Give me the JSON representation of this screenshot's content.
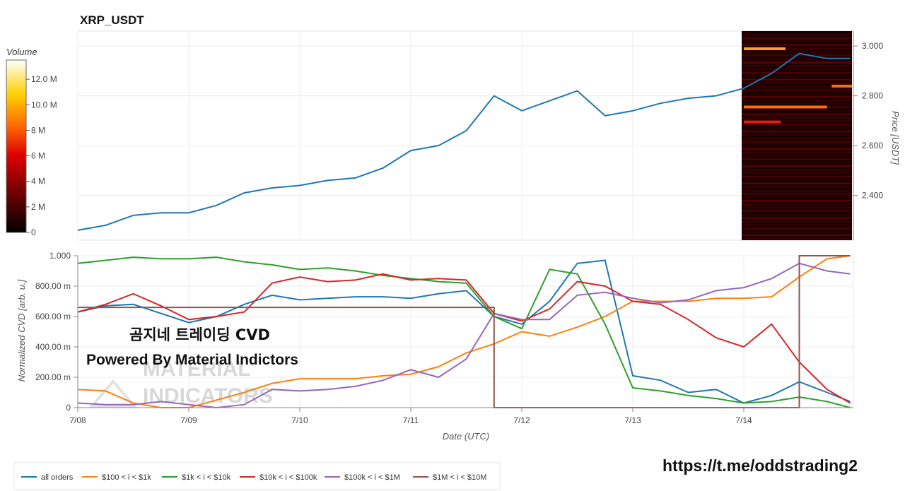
{
  "chart_data": [
    {
      "type": "line",
      "title": "XRP_USDT",
      "ylabel": "Price [USDT]",
      "ylim": [
        2.22,
        3.06
      ],
      "y_ticks": [
        "2.400",
        "2.600",
        "2.800",
        "3.000"
      ],
      "grid": true,
      "x": [
        "7/08 00:00",
        "7/08 06:00",
        "7/08 12:00",
        "7/08 18:00",
        "7/09 00:00",
        "7/09 06:00",
        "7/09 12:00",
        "7/09 18:00",
        "7/10 00:00",
        "7/10 06:00",
        "7/10 12:00",
        "7/10 18:00",
        "7/11 00:00",
        "7/11 06:00",
        "7/11 12:00",
        "7/11 18:00",
        "7/12 00:00",
        "7/12 06:00",
        "7/12 12:00",
        "7/12 18:00",
        "7/13 00:00",
        "7/13 06:00",
        "7/13 12:00",
        "7/13 18:00",
        "7/14 00:00",
        "7/14 06:00",
        "7/14 12:00",
        "7/14 18:00",
        "7/14 23:00"
      ],
      "series": [
        {
          "values": [
            2.26,
            2.28,
            2.32,
            2.33,
            2.33,
            2.36,
            2.41,
            2.43,
            2.44,
            2.46,
            2.47,
            2.51,
            2.58,
            2.6,
            2.66,
            2.8,
            2.74,
            2.78,
            2.82,
            2.72,
            2.74,
            2.77,
            2.79,
            2.8,
            2.83,
            2.89,
            2.97,
            2.95,
            2.95
          ],
          "color": "#1f77b4"
        }
      ],
      "heatmap": {
        "label": "Volume",
        "colorbar_ticks": [
          "0",
          "2 M",
          "4 M",
          "6 M",
          "8 M",
          "10.0 M",
          "12.0 M"
        ],
        "colorbar_range": [
          0,
          13500000
        ],
        "levels": [
          {
            "price": 2.989,
            "x_start": "7/14 00:00",
            "x_end": "7/14 09:00",
            "volume": 9000000
          },
          {
            "price": 2.839,
            "x_start": "7/14 19:00",
            "x_end": "7/14 23:59",
            "volume": 8000000
          },
          {
            "price": 2.755,
            "x_start": "7/14 00:00",
            "x_end": "7/14 18:00",
            "volume": 8000000
          },
          {
            "price": 2.695,
            "x_start": "7/14 00:00",
            "x_end": "7/14 08:00",
            "volume": 4000000
          }
        ]
      }
    },
    {
      "type": "line",
      "xlabel": "Date (UTC)",
      "ylabel": "Normalized CVD [arb. u.]",
      "ylim": [
        0,
        1
      ],
      "y_ticks": [
        "0",
        "200.00 m",
        "400.00 m",
        "600.00 m",
        "800.00 m",
        "1.000"
      ],
      "x_ticks": [
        "7/08",
        "7/09",
        "7/10",
        "7/11",
        "7/12",
        "7/13",
        "7/14"
      ],
      "grid": true,
      "legend": "bottom-left",
      "x": [
        "7/08 00:00",
        "7/08 06:00",
        "7/08 12:00",
        "7/08 18:00",
        "7/09 00:00",
        "7/09 06:00",
        "7/09 12:00",
        "7/09 18:00",
        "7/10 00:00",
        "7/10 06:00",
        "7/10 12:00",
        "7/10 18:00",
        "7/11 00:00",
        "7/11 06:00",
        "7/11 12:00",
        "7/11 18:00",
        "7/12 00:00",
        "7/12 06:00",
        "7/12 12:00",
        "7/12 18:00",
        "7/13 00:00",
        "7/13 06:00",
        "7/13 12:00",
        "7/13 18:00",
        "7/14 00:00",
        "7/14 06:00",
        "7/14 12:00",
        "7/14 18:00",
        "7/14 23:00"
      ],
      "series": [
        {
          "name": "all orders",
          "color": "#1f77b4",
          "values": [
            0.63,
            0.67,
            0.68,
            0.62,
            0.56,
            0.6,
            0.68,
            0.74,
            0.71,
            0.72,
            0.73,
            0.73,
            0.72,
            0.75,
            0.77,
            0.6,
            0.55,
            0.7,
            0.95,
            0.97,
            0.21,
            0.18,
            0.1,
            0.12,
            0.03,
            0.08,
            0.17,
            0.1,
            0.04
          ]
        },
        {
          "name": "$100 < i < $1k",
          "color": "#ff7f0e",
          "values": [
            0.12,
            0.11,
            0.03,
            0.0,
            0.0,
            0.05,
            0.1,
            0.16,
            0.19,
            0.19,
            0.19,
            0.21,
            0.22,
            0.27,
            0.36,
            0.42,
            0.5,
            0.47,
            0.53,
            0.6,
            0.7,
            0.7,
            0.7,
            0.72,
            0.72,
            0.73,
            0.86,
            0.98,
            1.0
          ]
        },
        {
          "name": "$1k < i < $10k",
          "color": "#2ca02c",
          "values": [
            0.95,
            0.97,
            0.99,
            0.98,
            0.98,
            0.99,
            0.96,
            0.94,
            0.91,
            0.92,
            0.9,
            0.87,
            0.85,
            0.83,
            0.82,
            0.6,
            0.52,
            0.91,
            0.88,
            0.55,
            0.13,
            0.11,
            0.08,
            0.06,
            0.03,
            0.04,
            0.07,
            0.04,
            0.0
          ]
        },
        {
          "name": "$10k < i < $100k",
          "color": "#d62728",
          "values": [
            0.63,
            0.68,
            0.75,
            0.67,
            0.58,
            0.6,
            0.63,
            0.82,
            0.86,
            0.83,
            0.84,
            0.88,
            0.84,
            0.85,
            0.84,
            0.62,
            0.57,
            0.65,
            0.83,
            0.8,
            0.7,
            0.68,
            0.58,
            0.46,
            0.4,
            0.55,
            0.3,
            0.12,
            0.03
          ]
        },
        {
          "name": "$100k < i < $1M",
          "color": "#9467bd",
          "values": [
            0.03,
            0.02,
            0.02,
            0.04,
            0.02,
            0.0,
            0.02,
            0.12,
            0.11,
            0.12,
            0.14,
            0.18,
            0.25,
            0.2,
            0.32,
            0.62,
            0.58,
            0.58,
            0.74,
            0.76,
            0.72,
            0.69,
            0.71,
            0.77,
            0.79,
            0.85,
            0.95,
            0.9,
            0.88
          ]
        },
        {
          "name": "$1M < i < $10M",
          "color": "#8c564b",
          "values": [
            0.66,
            0.66,
            0.66,
            0.66,
            0.66,
            0.66,
            0.66,
            0.66,
            0.66,
            0.66,
            0.66,
            0.66,
            0.66,
            0.66,
            0.66,
            0.0,
            0.0,
            0.0,
            0.0,
            0.0,
            0.0,
            0.0,
            0.0,
            0.0,
            0.0,
            0.0,
            1.0,
            1.0,
            1.0
          ]
        }
      ]
    }
  ],
  "overlay": {
    "line1": "곰지네 트레이딩 CVD",
    "line2": "Powered By Material Indictors",
    "watermark_line1": "MATERIAL",
    "watermark_line2": "INDICATORS",
    "url": "https://t.me/oddstrading2"
  }
}
